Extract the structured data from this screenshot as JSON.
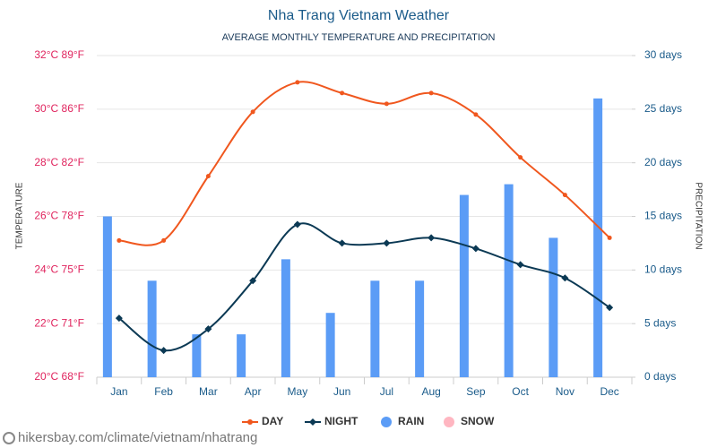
{
  "chart_data": {
    "type": "bar_line",
    "title": "Nha Trang Vietnam Weather",
    "subtitle": "AVERAGE MONTHLY TEMPERATURE AND PRECIPITATION",
    "y_label": "TEMPERATURE",
    "y2_label": "PRECIPITATION",
    "source": "hikersbay.com/climate/vietnam/nhatrang",
    "categories": [
      "Jan",
      "Feb",
      "Mar",
      "Apr",
      "May",
      "Jun",
      "Jul",
      "Aug",
      "Sep",
      "Oct",
      "Nov",
      "Dec"
    ],
    "ylim": [
      20,
      32
    ],
    "yticks": [
      {
        "value": 20,
        "label": "20°C 68°F"
      },
      {
        "value": 22,
        "label": "22°C 71°F"
      },
      {
        "value": 24,
        "label": "24°C 75°F"
      },
      {
        "value": 26,
        "label": "26°C 78°F"
      },
      {
        "value": 28,
        "label": "28°C 82°F"
      },
      {
        "value": 30,
        "label": "30°C 86°F"
      },
      {
        "value": 32,
        "label": "32°C 89°F"
      }
    ],
    "y2lim": [
      0,
      30
    ],
    "y2ticks": [
      {
        "value": 0,
        "label": "0 days"
      },
      {
        "value": 5,
        "label": "5 days"
      },
      {
        "value": 10,
        "label": "10 days"
      },
      {
        "value": 15,
        "label": "15 days"
      },
      {
        "value": 20,
        "label": "20 days"
      },
      {
        "value": 25,
        "label": "25 days"
      },
      {
        "value": 30,
        "label": "30 days"
      }
    ],
    "grid": true,
    "legend": "bottom",
    "series": [
      {
        "name": "DAY",
        "type": "line",
        "color": "#f0571e",
        "values": [
          25.1,
          25.1,
          27.5,
          29.9,
          31.0,
          30.6,
          30.2,
          30.6,
          29.8,
          28.2,
          26.8,
          25.2
        ]
      },
      {
        "name": "NIGHT",
        "type": "line",
        "color": "#0b3954",
        "values": [
          22.2,
          21.0,
          21.8,
          23.6,
          25.7,
          25.0,
          25.0,
          25.2,
          24.8,
          24.2,
          23.7,
          22.6
        ]
      },
      {
        "name": "RAIN",
        "type": "bar",
        "axis": "y2",
        "color": "#5b9cf6",
        "values": [
          15,
          9,
          4,
          4,
          11,
          6,
          9,
          9,
          17,
          18,
          13,
          26
        ]
      },
      {
        "name": "SNOW",
        "type": "bar",
        "axis": "y2",
        "color": "#ffb6c1",
        "values": [
          0,
          0,
          0,
          0,
          0,
          0,
          0,
          0,
          0,
          0,
          0,
          0
        ]
      }
    ]
  }
}
